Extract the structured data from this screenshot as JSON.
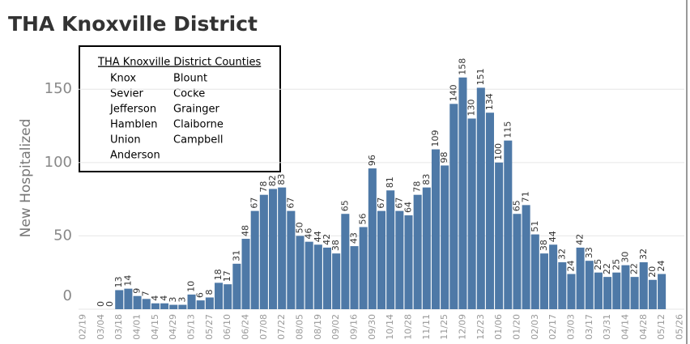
{
  "chart_data": {
    "type": "bar",
    "title": "THA Knoxville District",
    "y_label": "New Hospitalized",
    "legend_box": {
      "title": "THA Knoxville District Counties",
      "counties": [
        "Knox",
        "Blount",
        "Sevier",
        "Cocke",
        "Jefferson",
        "Grainger",
        "Hamblen",
        "Claiborne",
        "Union",
        "Campbell",
        "Anderson"
      ]
    },
    "categories": [
      "02/19",
      null,
      "03/04",
      null,
      "03/18",
      null,
      "04/01",
      null,
      "04/15",
      null,
      "04/29",
      null,
      "05/13",
      null,
      "05/27",
      null,
      "06/10",
      null,
      "06/24",
      null,
      "07/08",
      null,
      "07/22",
      null,
      "08/05",
      null,
      "08/19",
      null,
      "09/02",
      null,
      "09/16",
      null,
      "09/30",
      null,
      "10/14",
      null,
      "10/28",
      null,
      "11/11",
      null,
      "11/25",
      null,
      "12/09",
      null,
      "12/23",
      null,
      "01/06",
      null,
      "01/20",
      null,
      "02/03",
      null,
      "02/17",
      null,
      "03/03",
      null,
      "03/17",
      null,
      "03/31",
      null,
      "04/14",
      null,
      "04/28",
      null,
      "05/12",
      null,
      "05/26"
    ],
    "values": [
      null,
      null,
      0,
      0,
      13,
      14,
      9,
      7,
      4,
      4,
      3,
      3,
      10,
      6,
      8,
      18,
      17,
      31,
      48,
      67,
      78,
      82,
      83,
      67,
      50,
      46,
      44,
      42,
      38,
      65,
      43,
      56,
      96,
      67,
      81,
      67,
      64,
      78,
      83,
      109,
      98,
      140,
      158,
      130,
      151,
      134,
      100,
      115,
      65,
      71,
      51,
      38,
      44,
      32,
      24,
      42,
      33,
      25,
      22,
      25,
      30,
      22,
      32,
      20,
      24,
      null,
      null
    ],
    "color": "#4e79a7",
    "ylim": [
      0,
      186
    ],
    "yticks": [
      0,
      50,
      100,
      150
    ],
    "grid": true
  }
}
